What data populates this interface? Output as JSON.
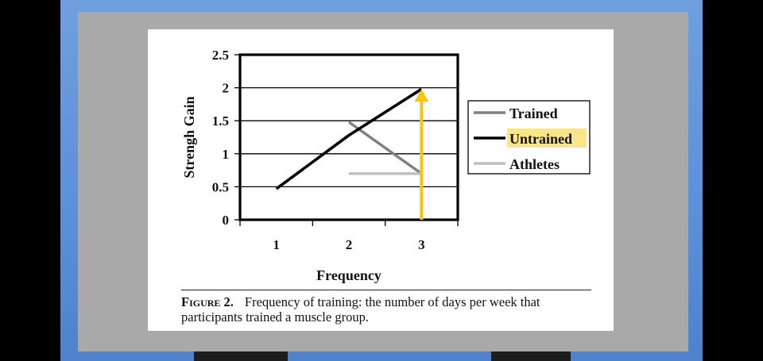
{
  "chart_data": {
    "type": "line",
    "xlabel": "Frequency",
    "ylabel": "Strengh Gain",
    "x": [
      1,
      2,
      3
    ],
    "xticks": [
      "1",
      "2",
      "3"
    ],
    "yticks": [
      "0",
      "0.5",
      "1",
      "1.5",
      "2",
      "2.5"
    ],
    "xlim": [
      0.5,
      3.5
    ],
    "ylim": [
      0,
      2.5
    ],
    "grid": "horizontal",
    "legend_position": "right",
    "series": [
      {
        "name": "Trained",
        "color": "#7f7f7f",
        "points": [
          [
            2,
            1.48
          ],
          [
            3,
            0.7
          ]
        ]
      },
      {
        "name": "Untrained",
        "color": "#000000",
        "points": [
          [
            1,
            0.47
          ],
          [
            2,
            1.28
          ],
          [
            3,
            1.98
          ]
        ]
      },
      {
        "name": "Athletes",
        "color": "#bfbfbf",
        "points": [
          [
            2,
            0.7
          ],
          [
            3,
            0.7
          ]
        ]
      }
    ],
    "legend_highlight": "Untrained",
    "highlight_color": "#fbe58a",
    "annotation": {
      "type": "arrow",
      "color": "#f5c518",
      "x": 3,
      "from": 0,
      "to": 1.98
    }
  },
  "caption": {
    "figure_number": "Figure 2.",
    "text": "Frequency of training: the number of days per week that participants trained a muscle group."
  }
}
